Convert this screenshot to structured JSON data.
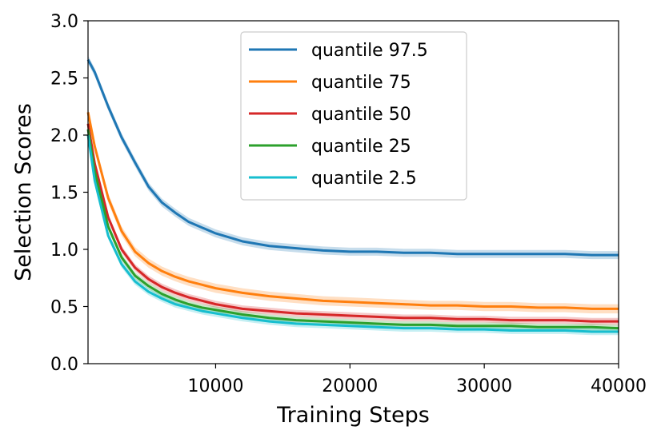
{
  "chart_data": {
    "type": "line",
    "xlabel": "Training Steps",
    "ylabel": "Selection Scores",
    "xlim": [
      500,
      40000
    ],
    "ylim": [
      0.0,
      3.0
    ],
    "x_ticks": [
      10000,
      20000,
      30000,
      40000
    ],
    "x_tick_labels": [
      "10000",
      "20000",
      "30000",
      "40000"
    ],
    "y_ticks": [
      0.0,
      0.5,
      1.0,
      1.5,
      2.0,
      2.5,
      3.0
    ],
    "y_tick_labels": [
      "0.0",
      "0.5",
      "1.0",
      "1.5",
      "2.0",
      "2.5",
      "3.0"
    ],
    "grid": false,
    "legend_position": "top-center",
    "x": [
      500,
      1000,
      2000,
      3000,
      4000,
      5000,
      6000,
      7000,
      8000,
      9000,
      10000,
      12000,
      14000,
      16000,
      18000,
      20000,
      22000,
      24000,
      26000,
      28000,
      30000,
      32000,
      34000,
      36000,
      38000,
      40000
    ],
    "series": [
      {
        "name": "quantile 97.5",
        "color": "#1f77b4",
        "values": [
          2.66,
          2.55,
          2.25,
          1.98,
          1.76,
          1.55,
          1.41,
          1.32,
          1.24,
          1.19,
          1.14,
          1.07,
          1.03,
          1.01,
          0.99,
          0.98,
          0.98,
          0.97,
          0.97,
          0.96,
          0.96,
          0.96,
          0.96,
          0.96,
          0.95,
          0.95
        ],
        "band": 0.035
      },
      {
        "name": "quantile 75",
        "color": "#ff7f0e",
        "values": [
          2.2,
          1.9,
          1.45,
          1.16,
          0.98,
          0.88,
          0.81,
          0.76,
          0.72,
          0.69,
          0.66,
          0.62,
          0.59,
          0.57,
          0.55,
          0.54,
          0.53,
          0.52,
          0.51,
          0.51,
          0.5,
          0.5,
          0.49,
          0.49,
          0.48,
          0.48
        ],
        "band": 0.04
      },
      {
        "name": "quantile 50",
        "color": "#d62728",
        "values": [
          2.1,
          1.75,
          1.28,
          1.0,
          0.84,
          0.74,
          0.67,
          0.62,
          0.58,
          0.55,
          0.52,
          0.48,
          0.46,
          0.44,
          0.43,
          0.42,
          0.41,
          0.4,
          0.4,
          0.39,
          0.39,
          0.38,
          0.38,
          0.38,
          0.37,
          0.37
        ],
        "band": 0.03
      },
      {
        "name": "quantile 25",
        "color": "#2ca02c",
        "values": [
          2.05,
          1.68,
          1.2,
          0.93,
          0.77,
          0.68,
          0.61,
          0.56,
          0.52,
          0.49,
          0.47,
          0.43,
          0.4,
          0.38,
          0.37,
          0.36,
          0.35,
          0.34,
          0.34,
          0.33,
          0.33,
          0.33,
          0.32,
          0.32,
          0.32,
          0.31
        ],
        "band": 0.03
      },
      {
        "name": "quantile 2.5",
        "color": "#17becf",
        "values": [
          2.0,
          1.6,
          1.12,
          0.87,
          0.72,
          0.63,
          0.57,
          0.52,
          0.49,
          0.46,
          0.44,
          0.4,
          0.37,
          0.35,
          0.34,
          0.33,
          0.32,
          0.31,
          0.31,
          0.3,
          0.3,
          0.29,
          0.29,
          0.29,
          0.28,
          0.28
        ],
        "band": 0.03
      }
    ]
  }
}
